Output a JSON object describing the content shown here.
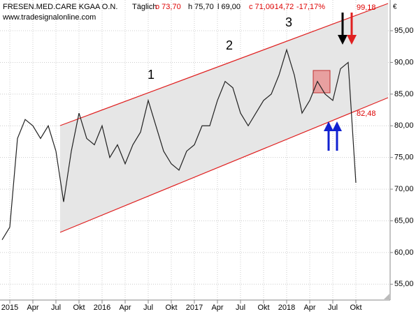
{
  "chart_data": {
    "type": "line",
    "header": {
      "name": "FRESEN.MED.CARE KGAA O.N.",
      "interval": "Täglich",
      "open": "o 73,70",
      "high": "h 75,70",
      "low": "l 69,00",
      "close": "c 71,00",
      "change": "-14,72",
      "change_pct": "-17,17%",
      "source": "www.tradesignalonline.com"
    },
    "currency": "€",
    "annotations": {
      "wave1": "1",
      "wave2": "2",
      "wave3": "3",
      "upper_channel": "99,18",
      "lower_channel": "82,48"
    },
    "x": [
      "2014-12",
      "2015-01",
      "2015-02",
      "2015-03",
      "2015-04",
      "2015-05",
      "2015-06",
      "2015-07",
      "2015-08",
      "2015-09",
      "2015-10",
      "2015-11",
      "2015-12",
      "2016-01",
      "2016-02",
      "2016-03",
      "2016-04",
      "2016-05",
      "2016-06",
      "2016-07",
      "2016-08",
      "2016-09",
      "2016-10",
      "2016-11",
      "2016-12",
      "2017-01",
      "2017-02",
      "2017-03",
      "2017-04",
      "2017-05",
      "2017-06",
      "2017-07",
      "2017-08",
      "2017-09",
      "2017-10",
      "2017-11",
      "2017-12",
      "2018-01",
      "2018-02",
      "2018-03",
      "2018-04",
      "2018-05",
      "2018-06",
      "2018-07",
      "2018-08",
      "2018-09",
      "2018-10"
    ],
    "series": [
      {
        "name": "FRESEN.MED.CARE KGAA O.N.",
        "color": "#222222",
        "values": [
          62,
          64,
          78,
          81,
          80,
          78,
          80,
          76,
          68,
          76,
          82,
          78,
          77,
          80,
          75,
          77,
          74,
          77,
          79,
          84,
          80,
          76,
          74,
          73,
          76,
          77,
          80,
          80,
          84,
          87,
          86,
          82,
          80,
          82,
          84,
          85,
          88,
          92,
          88,
          82,
          84,
          87,
          85,
          84,
          89,
          90,
          71
        ]
      }
    ],
    "ylim": [
      52.5,
      99.85
    ],
    "yticks": [
      {
        "value": 55,
        "label": "55,00"
      },
      {
        "value": 60,
        "label": "60,00"
      },
      {
        "value": 65,
        "label": "65,00"
      },
      {
        "value": 70,
        "label": "70,00"
      },
      {
        "value": 75,
        "label": "75,00"
      },
      {
        "value": 80,
        "label": "80,00"
      },
      {
        "value": 85,
        "label": "85,00"
      },
      {
        "value": 90,
        "label": "90,00"
      },
      {
        "value": 95,
        "label": "95,00"
      }
    ],
    "xticks": [
      {
        "value": "2015-01",
        "label": "2015"
      },
      {
        "value": "2015-04",
        "label": "Apr"
      },
      {
        "value": "2015-07",
        "label": "Jul"
      },
      {
        "value": "2015-10",
        "label": "Okt"
      },
      {
        "value": "2016-01",
        "label": "2016"
      },
      {
        "value": "2016-04",
        "label": "Apr"
      },
      {
        "value": "2016-07",
        "label": "Jul"
      },
      {
        "value": "2016-10",
        "label": "Okt"
      },
      {
        "value": "2017-01",
        "label": "2017"
      },
      {
        "value": "2017-04",
        "label": "Apr"
      },
      {
        "value": "2017-07",
        "label": "Jul"
      },
      {
        "value": "2017-10",
        "label": "Okt"
      },
      {
        "value": "2018-01",
        "label": "2018"
      },
      {
        "value": "2018-04",
        "label": "Apr"
      },
      {
        "value": "2018-07",
        "label": "Jul"
      },
      {
        "value": "2018-10",
        "label": "Okt"
      }
    ],
    "grid": true
  }
}
